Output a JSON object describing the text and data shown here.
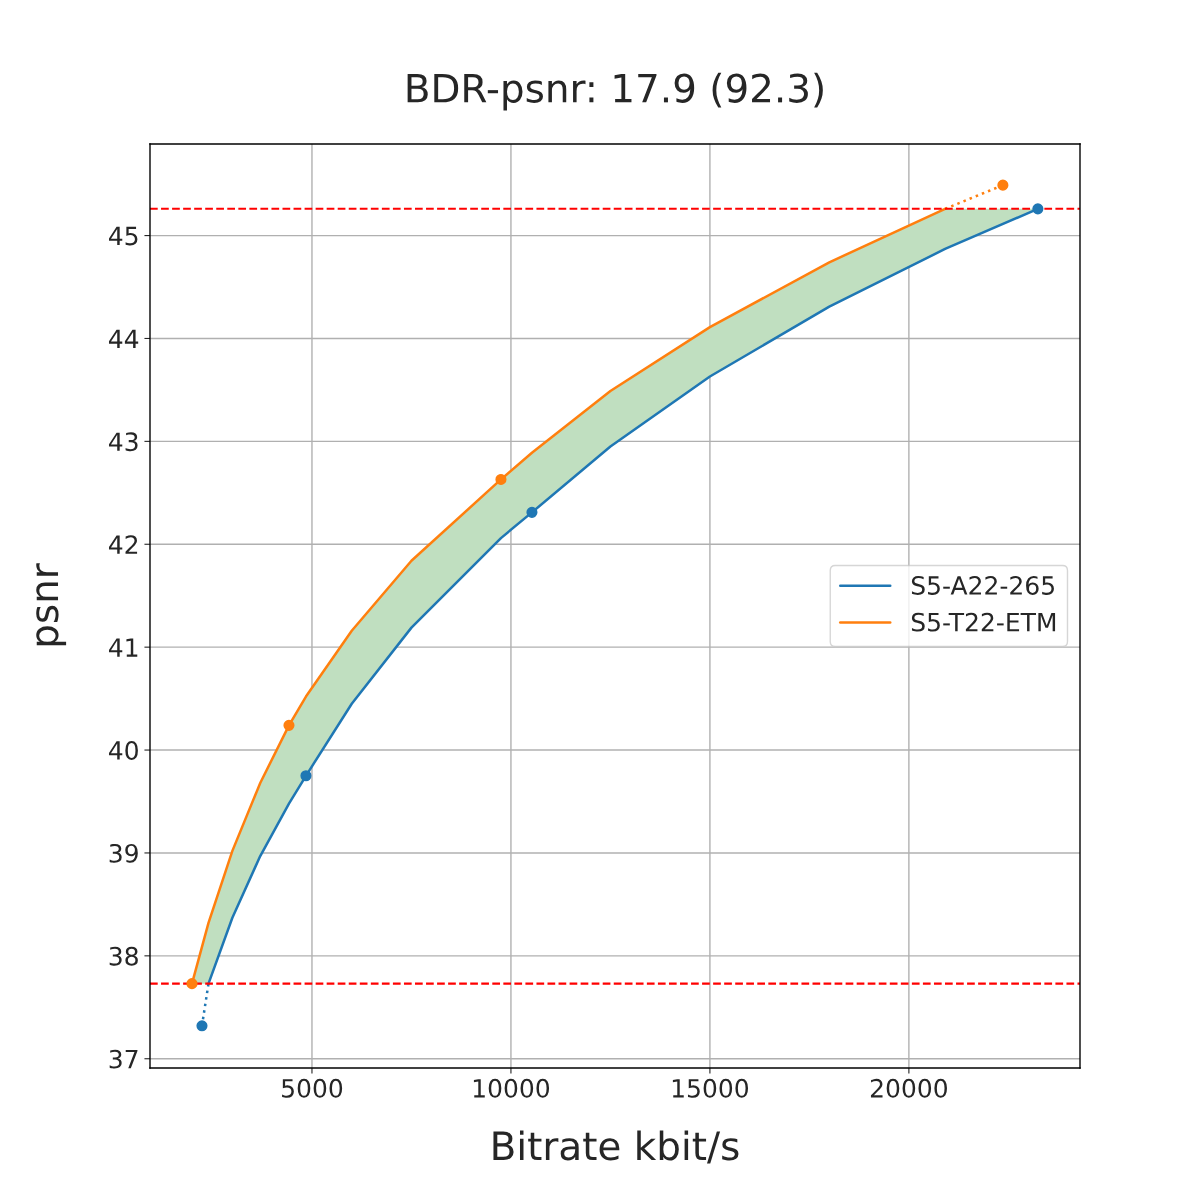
{
  "chart_data": {
    "type": "line",
    "title": "BDR-psnr: 17.9 (92.3)",
    "xlabel": "Bitrate kbit/s",
    "ylabel": "psnr",
    "series": [
      {
        "name": "S5-A22-265",
        "color": "#1f77b4",
        "line_style": "solid",
        "x": [
          1985,
          2400,
          3000,
          3700,
          4422,
          4849,
          6000,
          7500,
          9749,
          10528,
          12500,
          15000,
          18000,
          20910,
          23241
        ],
        "values": [
          null,
          37.73,
          38.37,
          38.97,
          39.48,
          39.75,
          40.45,
          41.19,
          42.06,
          42.31,
          42.95,
          43.63,
          44.31,
          44.87,
          45.26
        ],
        "lower": [
          37.73,
          37.73,
          38.37,
          38.97,
          39.48,
          39.75,
          40.45,
          41.19,
          42.06,
          42.31,
          42.95,
          43.63,
          44.31,
          44.87,
          45.26
        ],
        "upper": [
          37.73,
          38.32,
          39.02,
          39.68,
          40.24,
          40.52,
          41.16,
          41.84,
          42.63,
          42.89,
          43.49,
          44.11,
          44.74,
          45.26,
          45.26
        ]
      },
      {
        "color": "#1f77b4",
        "line_style": "dotted",
        "x": [
          2236,
          2400
        ],
        "values": [
          37.32,
          37.73
        ]
      },
      {
        "name": "S5-T22-ETM",
        "color": "#ff7f0e",
        "line_style": "solid",
        "x": [
          1985,
          2400,
          3000,
          3700,
          4422,
          4849,
          6000,
          7500,
          9749,
          10528,
          12500,
          15000,
          18000,
          20910
        ],
        "values": [
          37.73,
          38.32,
          39.02,
          39.68,
          40.24,
          40.52,
          41.16,
          41.84,
          42.63,
          42.89,
          43.49,
          44.11,
          44.74,
          45.26
        ]
      },
      {
        "color": "#ff7f0e",
        "line_style": "dotted",
        "x": [
          20910,
          22362
        ],
        "values": [
          45.26,
          45.49
        ]
      },
      {
        "type": "scatter",
        "color": "#1f77b4",
        "marker": "circle",
        "x": [
          2236,
          4849,
          10528,
          23241
        ],
        "values": [
          37.32,
          39.75,
          42.31,
          45.26
        ]
      },
      {
        "type": "scatter",
        "color": "#ff7f0e",
        "marker": "circle",
        "x": [
          1985,
          4422,
          9749,
          22362
        ],
        "values": [
          37.73,
          40.24,
          42.63,
          45.49
        ]
      }
    ],
    "xlim": [
      930,
      24300
    ],
    "ylim": [
      36.91,
      45.89
    ],
    "xticks": [
      5000,
      10000,
      15000,
      20000
    ],
    "yticks": [
      37,
      38,
      39,
      40,
      41,
      42,
      43,
      44,
      45
    ],
    "ref_lines": [
      {
        "axis": "y",
        "value": 37.73,
        "color": "#ff0000",
        "line_style": "dashed"
      },
      {
        "axis": "y",
        "value": 45.26,
        "color": "#ff0000",
        "line_style": "dashed"
      }
    ],
    "grid": true,
    "legend": "right"
  }
}
